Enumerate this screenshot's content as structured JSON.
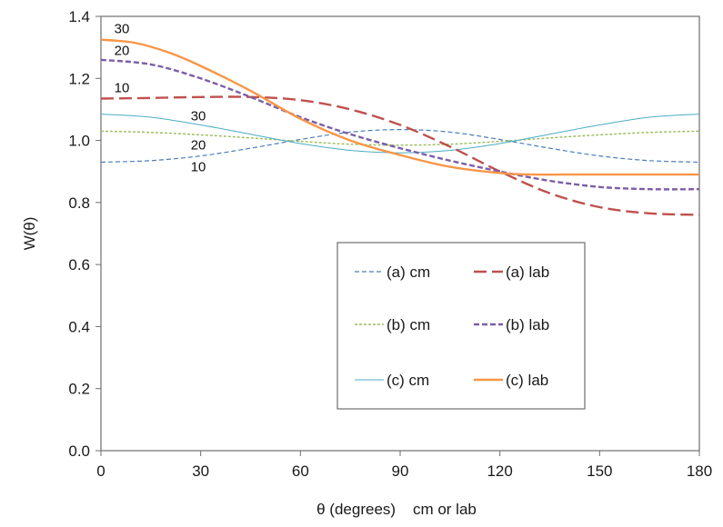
{
  "chart_data": {
    "type": "line",
    "title": "",
    "xlabel": "θ (degrees)    cm or lab",
    "ylabel": "W(θ)",
    "xlim": [
      0,
      180
    ],
    "ylim": [
      0.0,
      1.4
    ],
    "xticks": [
      0,
      30,
      60,
      90,
      120,
      150,
      180
    ],
    "yticks": [
      "0.0",
      "0.2",
      "0.4",
      "0.6",
      "0.8",
      "1.0",
      "1.2",
      "1.4"
    ],
    "grid": false,
    "legend": {
      "placement": "lower-right",
      "entries": [
        "(a) cm",
        "(a) lab",
        "(b) cm",
        "(b) lab",
        "(c) cm",
        "(c) lab"
      ]
    },
    "annotations": [
      {
        "text": "30",
        "x": 4,
        "y": 1.36
      },
      {
        "text": "20",
        "x": 4,
        "y": 1.29
      },
      {
        "text": "10",
        "x": 4,
        "y": 1.17
      },
      {
        "text": "30",
        "x": 27,
        "y": 1.08
      },
      {
        "text": "20",
        "x": 27,
        "y": 0.985
      },
      {
        "text": "10",
        "x": 27,
        "y": 0.915
      }
    ],
    "series": [
      {
        "name": "(a) cm",
        "color": "#4a7ebb",
        "dash": "5,3",
        "width": 1.2,
        "x": [
          0,
          15,
          30,
          45,
          60,
          75,
          90,
          105,
          120,
          135,
          150,
          165,
          180
        ],
        "y": [
          0.93,
          0.935,
          0.95,
          0.975,
          1.003,
          1.027,
          1.035,
          1.027,
          1.003,
          0.975,
          0.95,
          0.935,
          0.93
        ]
      },
      {
        "name": "(b) cm",
        "color": "#9bbb59",
        "dash": "3,2",
        "width": 1.4,
        "x": [
          0,
          15,
          30,
          45,
          60,
          75,
          90,
          105,
          120,
          135,
          150,
          165,
          180
        ],
        "y": [
          1.03,
          1.026,
          1.018,
          1.008,
          0.997,
          0.988,
          0.985,
          0.988,
          0.997,
          1.008,
          1.018,
          1.026,
          1.03
        ]
      },
      {
        "name": "(c) cm",
        "color": "#4bacc6",
        "dash": "",
        "width": 1.0,
        "x": [
          0,
          15,
          30,
          45,
          60,
          75,
          90,
          105,
          120,
          135,
          150,
          165,
          180
        ],
        "y": [
          1.085,
          1.075,
          1.05,
          1.02,
          0.99,
          0.968,
          0.96,
          0.968,
          0.99,
          1.02,
          1.05,
          1.075,
          1.085
        ]
      },
      {
        "name": "(a) lab",
        "color": "#c0504d",
        "dash": "14,6",
        "width": 2.4,
        "x": [
          0,
          15,
          30,
          45,
          60,
          75,
          90,
          105,
          120,
          135,
          150,
          165,
          180
        ],
        "y": [
          1.135,
          1.137,
          1.14,
          1.14,
          1.13,
          1.1,
          1.05,
          0.98,
          0.9,
          0.83,
          0.785,
          0.765,
          0.76
        ]
      },
      {
        "name": "(b) lab",
        "color": "#7b5ea7",
        "dash": "6,3",
        "width": 2.4,
        "x": [
          0,
          15,
          30,
          45,
          60,
          75,
          90,
          105,
          120,
          135,
          150,
          165,
          180
        ],
        "y": [
          1.26,
          1.245,
          1.2,
          1.14,
          1.075,
          1.02,
          0.975,
          0.935,
          0.9,
          0.87,
          0.85,
          0.843,
          0.843
        ]
      },
      {
        "name": "(c) lab",
        "color": "#f79646",
        "dash": "",
        "width": 2.4,
        "x": [
          0,
          10,
          20,
          30,
          45,
          60,
          75,
          90,
          105,
          120,
          130,
          140,
          160,
          180
        ],
        "y": [
          1.325,
          1.315,
          1.285,
          1.24,
          1.16,
          1.07,
          1.0,
          0.953,
          0.915,
          0.895,
          0.89,
          0.89,
          0.89,
          0.89
        ]
      }
    ]
  }
}
